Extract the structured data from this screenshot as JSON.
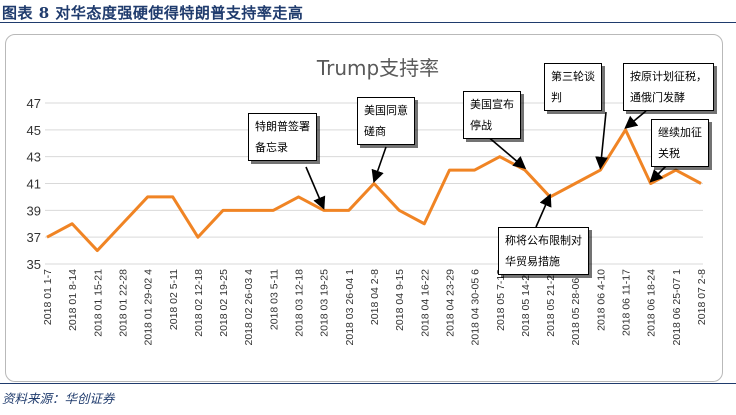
{
  "header": {
    "title": "图表 8   对华态度强硬使得特朗普支持率走高"
  },
  "footer": {
    "source": "资料来源：华创证券"
  },
  "chart_data": {
    "type": "line",
    "title": "Trump支持率",
    "categories": [
      "2018 01 1-7",
      "2018 01 8-14",
      "2018 01 15-21",
      "2018 01 22-28",
      "2018 01 29-02 4",
      "2018 02 5-11",
      "2018 02 12-18",
      "2018 02 19-25",
      "2018 02 26-03 4",
      "2018 03 5-11",
      "2018 03 12-18",
      "2018 03 19-25",
      "2018 03 26-04 1",
      "2018 04 2-8",
      "2018 04 9-15",
      "2018 04 16-22",
      "2018 04 23-29",
      "2018 04 30-05 6",
      "2018 05 7-13",
      "2018 05 14-20",
      "2018 05 21-27",
      "2018 05 28-06 3",
      "2018 06 4-10",
      "2018 06 11-17",
      "2018 06 18-24",
      "2018 06 25-07 1",
      "2018 07 2-8"
    ],
    "values": [
      37,
      38,
      36,
      38,
      40,
      40,
      37,
      39,
      39,
      39,
      40,
      39,
      39,
      41,
      39,
      38,
      42,
      42,
      43,
      42,
      40,
      41,
      42,
      45,
      41,
      42,
      41
    ],
    "ylim": [
      35,
      47
    ],
    "yticks": [
      35,
      37,
      39,
      41,
      43,
      45,
      47
    ],
    "line_color": "#f08424",
    "grid": true,
    "annotations": [
      {
        "lines": [
          "特朗普签署",
          "备忘录"
        ],
        "target_index": 11
      },
      {
        "lines": [
          "美国同意",
          "磋商"
        ],
        "target_index": 13
      },
      {
        "lines": [
          "美国宣布",
          "停战"
        ],
        "target_index": 19
      },
      {
        "lines": [
          "第三轮谈",
          "判"
        ],
        "target_index": 22
      },
      {
        "lines": [
          "按原计划征税，",
          "通俄门发酵"
        ],
        "target_index": 23
      },
      {
        "lines": [
          "继续加征",
          "关税"
        ],
        "target_index": 24
      },
      {
        "lines": [
          "称将公布限制对",
          "华贸易措施"
        ],
        "target_index": 20
      }
    ]
  }
}
